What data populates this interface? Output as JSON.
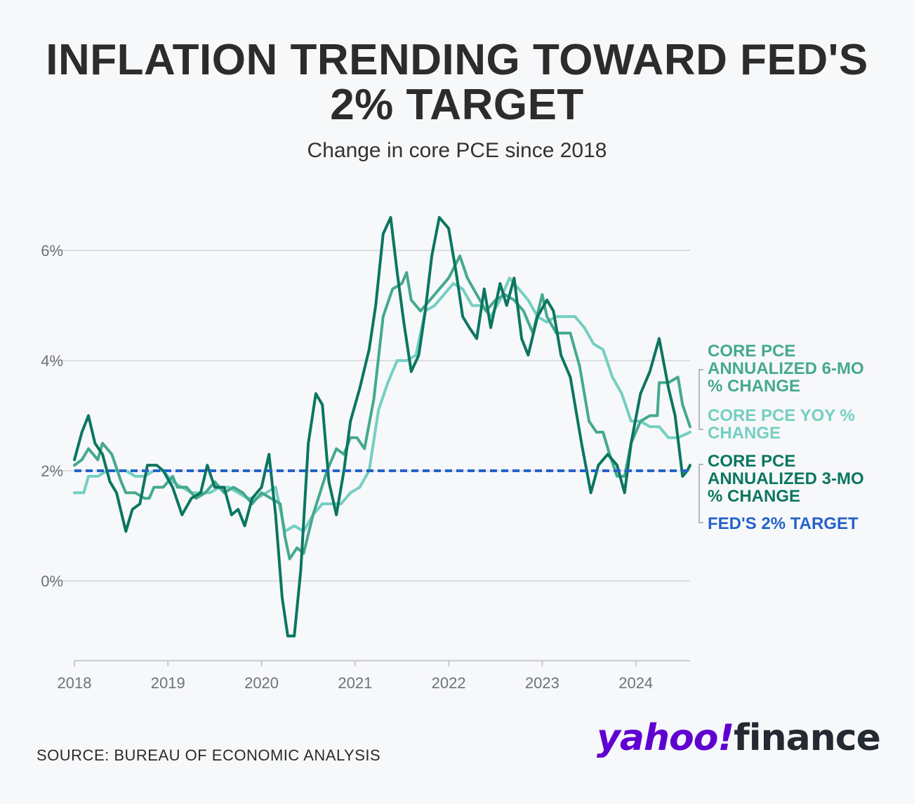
{
  "header": {
    "title_line1": "INFLATION TRENDING TOWARD FED'S",
    "title_line2": "2% TARGET",
    "subtitle": "Change in core PCE since 2018"
  },
  "footer": {
    "source": "SOURCE: BUREAU OF ECONOMIC ANALYSIS",
    "logo_yahoo": "yahoo!",
    "logo_finance": "finance"
  },
  "chart_data": {
    "type": "line",
    "title": "INFLATION TRENDING TOWARD FED'S 2% TARGET",
    "subtitle": "Change in core PCE since 2018",
    "xlabel": "",
    "ylabel": "",
    "xlim": [
      2018.0,
      2024.58
    ],
    "ylim": [
      -1.5,
      6.5
    ],
    "yticks": [
      {
        "v": 0,
        "label": "0%"
      },
      {
        "v": 2,
        "label": "2%"
      },
      {
        "v": 4,
        "label": "4%"
      },
      {
        "v": 6,
        "label": "6%"
      }
    ],
    "xticks": [
      {
        "v": 2018,
        "label": "2018"
      },
      {
        "v": 2019,
        "label": "2019"
      },
      {
        "v": 2020,
        "label": "2020"
      },
      {
        "v": 2021,
        "label": "2021"
      },
      {
        "v": 2022,
        "label": "2022"
      },
      {
        "v": 2023,
        "label": "2023"
      },
      {
        "v": 2024,
        "label": "2024"
      }
    ],
    "target": {
      "name": "FED'S 2% TARGET",
      "value": 2,
      "color": "#2463c9"
    },
    "series": [
      {
        "name": "CORE PCE YOY % CHANGE",
        "color": "#74cfc2",
        "points": [
          [
            2018.0,
            1.6
          ],
          [
            2018.1,
            1.6
          ],
          [
            2018.15,
            1.9
          ],
          [
            2018.25,
            1.9
          ],
          [
            2018.35,
            2.0
          ],
          [
            2018.45,
            2.0
          ],
          [
            2018.55,
            2.0
          ],
          [
            2018.65,
            1.9
          ],
          [
            2018.75,
            1.9
          ],
          [
            2018.85,
            2.0
          ],
          [
            2018.95,
            2.0
          ],
          [
            2019.05,
            1.8
          ],
          [
            2019.15,
            1.7
          ],
          [
            2019.25,
            1.6
          ],
          [
            2019.35,
            1.6
          ],
          [
            2019.45,
            1.6
          ],
          [
            2019.55,
            1.7
          ],
          [
            2019.65,
            1.7
          ],
          [
            2019.75,
            1.6
          ],
          [
            2019.85,
            1.5
          ],
          [
            2019.95,
            1.5
          ],
          [
            2020.05,
            1.6
          ],
          [
            2020.15,
            1.7
          ],
          [
            2020.25,
            0.9
          ],
          [
            2020.35,
            1.0
          ],
          [
            2020.45,
            0.9
          ],
          [
            2020.55,
            1.2
          ],
          [
            2020.65,
            1.4
          ],
          [
            2020.75,
            1.4
          ],
          [
            2020.85,
            1.4
          ],
          [
            2020.95,
            1.6
          ],
          [
            2021.05,
            1.7
          ],
          [
            2021.15,
            2.0
          ],
          [
            2021.25,
            3.1
          ],
          [
            2021.35,
            3.6
          ],
          [
            2021.45,
            4.0
          ],
          [
            2021.55,
            4.0
          ],
          [
            2021.65,
            4.1
          ],
          [
            2021.75,
            4.9
          ],
          [
            2021.85,
            5.0
          ],
          [
            2021.95,
            5.2
          ],
          [
            2022.05,
            5.4
          ],
          [
            2022.15,
            5.3
          ],
          [
            2022.25,
            5.0
          ],
          [
            2022.35,
            5.0
          ],
          [
            2022.45,
            4.8
          ],
          [
            2022.55,
            5.1
          ],
          [
            2022.65,
            5.5
          ],
          [
            2022.75,
            5.3
          ],
          [
            2022.85,
            5.1
          ],
          [
            2022.95,
            4.8
          ],
          [
            2023.05,
            4.7
          ],
          [
            2023.15,
            4.8
          ],
          [
            2023.25,
            4.8
          ],
          [
            2023.35,
            4.8
          ],
          [
            2023.45,
            4.6
          ],
          [
            2023.55,
            4.3
          ],
          [
            2023.65,
            4.2
          ],
          [
            2023.75,
            3.7
          ],
          [
            2023.85,
            3.4
          ],
          [
            2023.95,
            2.9
          ],
          [
            2024.05,
            2.9
          ],
          [
            2024.15,
            2.8
          ],
          [
            2024.25,
            2.8
          ],
          [
            2024.35,
            2.6
          ],
          [
            2024.45,
            2.6
          ],
          [
            2024.58,
            2.7
          ]
        ]
      },
      {
        "name": "CORE PCE ANNUALIZED 6-MO % CHANGE",
        "color": "#45a98e",
        "points": [
          [
            2018.0,
            2.1
          ],
          [
            2018.08,
            2.2
          ],
          [
            2018.15,
            2.4
          ],
          [
            2018.25,
            2.2
          ],
          [
            2018.3,
            2.5
          ],
          [
            2018.4,
            2.3
          ],
          [
            2018.5,
            1.8
          ],
          [
            2018.55,
            1.6
          ],
          [
            2018.65,
            1.6
          ],
          [
            2018.75,
            1.5
          ],
          [
            2018.8,
            1.5
          ],
          [
            2018.85,
            1.7
          ],
          [
            2018.95,
            1.7
          ],
          [
            2019.05,
            1.9
          ],
          [
            2019.1,
            1.7
          ],
          [
            2019.2,
            1.7
          ],
          [
            2019.3,
            1.5
          ],
          [
            2019.4,
            1.6
          ],
          [
            2019.5,
            1.8
          ],
          [
            2019.6,
            1.6
          ],
          [
            2019.7,
            1.7
          ],
          [
            2019.8,
            1.6
          ],
          [
            2019.9,
            1.4
          ],
          [
            2020.0,
            1.6
          ],
          [
            2020.1,
            1.5
          ],
          [
            2020.2,
            1.4
          ],
          [
            2020.25,
            0.8
          ],
          [
            2020.3,
            0.4
          ],
          [
            2020.38,
            0.6
          ],
          [
            2020.45,
            0.5
          ],
          [
            2020.55,
            1.2
          ],
          [
            2020.7,
            2.0
          ],
          [
            2020.8,
            2.4
          ],
          [
            2020.88,
            2.3
          ],
          [
            2020.95,
            2.6
          ],
          [
            2021.02,
            2.6
          ],
          [
            2021.1,
            2.4
          ],
          [
            2021.2,
            3.3
          ],
          [
            2021.3,
            4.8
          ],
          [
            2021.4,
            5.3
          ],
          [
            2021.5,
            5.4
          ],
          [
            2021.55,
            5.6
          ],
          [
            2021.6,
            5.1
          ],
          [
            2021.7,
            4.9
          ],
          [
            2021.8,
            5.1
          ],
          [
            2021.9,
            5.3
          ],
          [
            2022.0,
            5.5
          ],
          [
            2022.12,
            5.9
          ],
          [
            2022.2,
            5.5
          ],
          [
            2022.3,
            5.2
          ],
          [
            2022.4,
            4.9
          ],
          [
            2022.5,
            5.1
          ],
          [
            2022.6,
            5.2
          ],
          [
            2022.7,
            5.1
          ],
          [
            2022.8,
            4.9
          ],
          [
            2022.9,
            4.5
          ],
          [
            2023.0,
            5.2
          ],
          [
            2023.05,
            4.8
          ],
          [
            2023.15,
            4.5
          ],
          [
            2023.3,
            4.5
          ],
          [
            2023.4,
            3.9
          ],
          [
            2023.5,
            2.9
          ],
          [
            2023.58,
            2.7
          ],
          [
            2023.65,
            2.7
          ],
          [
            2023.72,
            2.3
          ],
          [
            2023.8,
            1.9
          ],
          [
            2023.88,
            1.9
          ],
          [
            2023.95,
            2.5
          ],
          [
            2024.05,
            2.9
          ],
          [
            2024.15,
            3.0
          ],
          [
            2024.23,
            3.0
          ],
          [
            2024.25,
            3.6
          ],
          [
            2024.35,
            3.6
          ],
          [
            2024.45,
            3.7
          ],
          [
            2024.5,
            3.2
          ],
          [
            2024.58,
            2.8
          ]
        ]
      },
      {
        "name": "CORE PCE ANNUALIZED 3-MO % CHANGE",
        "color": "#0b7660",
        "points": [
          [
            2018.0,
            2.2
          ],
          [
            2018.08,
            2.7
          ],
          [
            2018.15,
            3.0
          ],
          [
            2018.22,
            2.5
          ],
          [
            2018.3,
            2.3
          ],
          [
            2018.38,
            1.8
          ],
          [
            2018.45,
            1.6
          ],
          [
            2018.55,
            0.9
          ],
          [
            2018.62,
            1.3
          ],
          [
            2018.7,
            1.4
          ],
          [
            2018.78,
            2.1
          ],
          [
            2018.88,
            2.1
          ],
          [
            2018.95,
            2.0
          ],
          [
            2019.05,
            1.7
          ],
          [
            2019.15,
            1.2
          ],
          [
            2019.25,
            1.5
          ],
          [
            2019.35,
            1.6
          ],
          [
            2019.42,
            2.1
          ],
          [
            2019.5,
            1.7
          ],
          [
            2019.6,
            1.7
          ],
          [
            2019.68,
            1.2
          ],
          [
            2019.75,
            1.3
          ],
          [
            2019.82,
            1.0
          ],
          [
            2019.9,
            1.5
          ],
          [
            2020.0,
            1.7
          ],
          [
            2020.08,
            2.3
          ],
          [
            2020.15,
            1.2
          ],
          [
            2020.22,
            -0.3
          ],
          [
            2020.28,
            -1.0
          ],
          [
            2020.35,
            -1.0
          ],
          [
            2020.42,
            0.2
          ],
          [
            2020.5,
            2.5
          ],
          [
            2020.58,
            3.4
          ],
          [
            2020.65,
            3.2
          ],
          [
            2020.72,
            1.8
          ],
          [
            2020.8,
            1.2
          ],
          [
            2020.88,
            2.0
          ],
          [
            2020.95,
            2.9
          ],
          [
            2021.05,
            3.5
          ],
          [
            2021.15,
            4.2
          ],
          [
            2021.22,
            5.0
          ],
          [
            2021.3,
            6.3
          ],
          [
            2021.38,
            6.6
          ],
          [
            2021.45,
            5.6
          ],
          [
            2021.52,
            4.7
          ],
          [
            2021.6,
            3.8
          ],
          [
            2021.68,
            4.1
          ],
          [
            2021.75,
            4.9
          ],
          [
            2021.82,
            5.9
          ],
          [
            2021.9,
            6.6
          ],
          [
            2022.0,
            6.4
          ],
          [
            2022.08,
            5.6
          ],
          [
            2022.15,
            4.8
          ],
          [
            2022.22,
            4.6
          ],
          [
            2022.3,
            4.4
          ],
          [
            2022.38,
            5.3
          ],
          [
            2022.45,
            4.6
          ],
          [
            2022.55,
            5.4
          ],
          [
            2022.62,
            5.0
          ],
          [
            2022.7,
            5.5
          ],
          [
            2022.78,
            4.4
          ],
          [
            2022.85,
            4.1
          ],
          [
            2022.95,
            4.8
          ],
          [
            2023.05,
            5.1
          ],
          [
            2023.12,
            4.9
          ],
          [
            2023.2,
            4.1
          ],
          [
            2023.3,
            3.7
          ],
          [
            2023.42,
            2.5
          ],
          [
            2023.52,
            1.6
          ],
          [
            2023.6,
            2.1
          ],
          [
            2023.7,
            2.3
          ],
          [
            2023.8,
            2.1
          ],
          [
            2023.88,
            1.6
          ],
          [
            2023.95,
            2.5
          ],
          [
            2024.05,
            3.4
          ],
          [
            2024.15,
            3.8
          ],
          [
            2024.25,
            4.4
          ],
          [
            2024.35,
            3.5
          ],
          [
            2024.42,
            3.0
          ],
          [
            2024.5,
            1.9
          ],
          [
            2024.55,
            2.0
          ],
          [
            2024.58,
            2.1
          ]
        ]
      }
    ],
    "legend": [
      {
        "lines": [
          "CORE PCE",
          "ANNUALIZED 6-MO",
          "% CHANGE"
        ],
        "color": "#45a98e"
      },
      {
        "lines": [
          "CORE PCE YOY %",
          "CHANGE"
        ],
        "color": "#74cfc2"
      },
      {
        "lines": [
          "CORE PCE",
          "ANNUALIZED 3-MO",
          "% CHANGE"
        ],
        "color": "#0b7660"
      },
      {
        "lines": [
          "FED'S 2% TARGET"
        ],
        "color": "#2463c9"
      }
    ],
    "legend_position": "right"
  }
}
